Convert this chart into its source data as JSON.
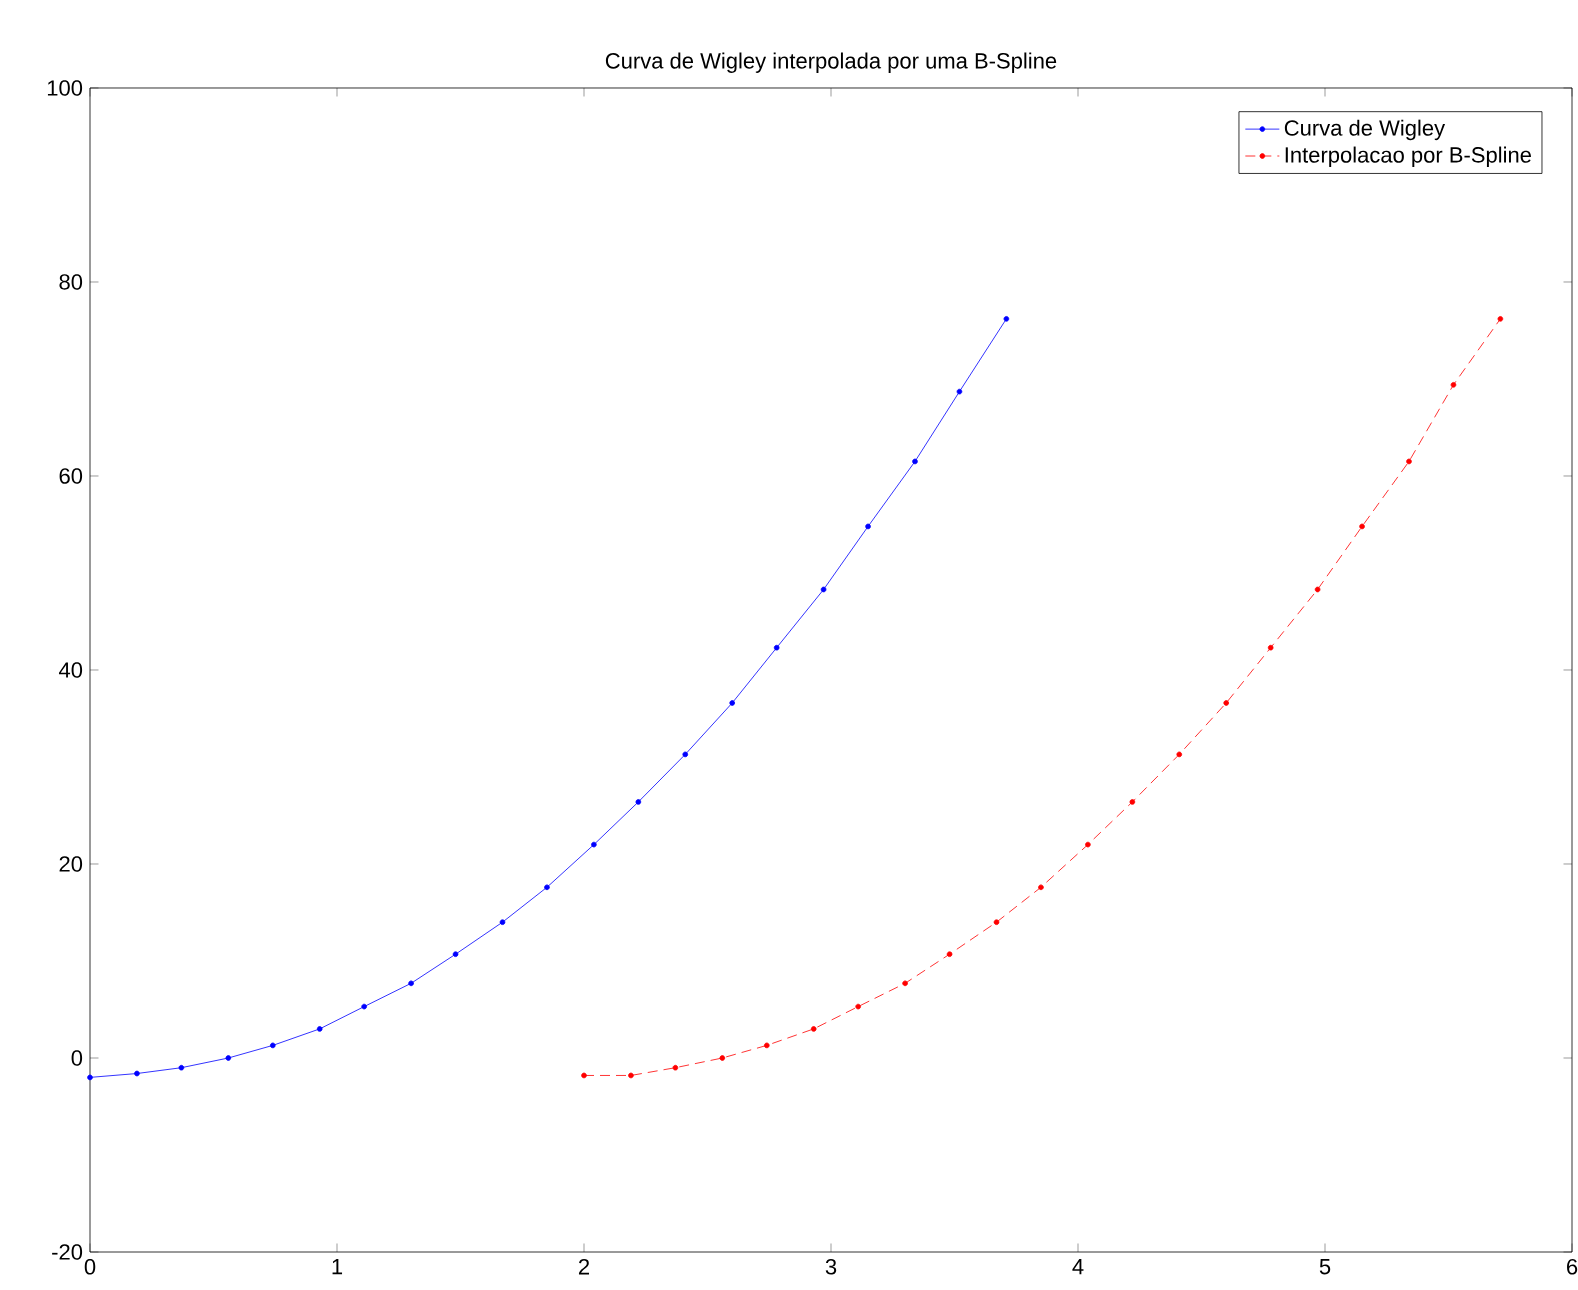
{
  "chart_data": {
    "type": "line",
    "title": "Curva de Wigley interpolada por uma B-Spline",
    "xlim": [
      0,
      6
    ],
    "ylim": [
      -20,
      100
    ],
    "xticks": [
      0,
      1,
      2,
      3,
      4,
      5,
      6
    ],
    "yticks": [
      -20,
      0,
      20,
      40,
      60,
      80,
      100
    ],
    "grid": false,
    "legend": "top right",
    "marker": "circle",
    "series": [
      {
        "name": "Curva de Wigley",
        "color": "#0000ff",
        "line_style": "solid",
        "x": [
          0,
          0.19,
          0.37,
          0.56,
          0.74,
          0.93,
          1.11,
          1.3,
          1.48,
          1.67,
          1.85,
          2.04,
          2.22,
          2.41,
          2.6,
          2.78,
          2.97,
          3.15,
          3.34,
          3.52,
          3.71
        ],
        "values": [
          -2,
          -1.6,
          -1,
          0,
          1.3,
          3,
          5.3,
          7.7,
          10.7,
          14,
          17.6,
          22,
          26.4,
          31.3,
          36.6,
          42.3,
          48.3,
          54.8,
          61.5,
          68.7,
          76.2
        ]
      },
      {
        "name": "Interpolacao por B-Spline",
        "color": "#ff0000",
        "line_style": "dashed",
        "x": [
          2,
          2.19,
          2.37,
          2.56,
          2.74,
          2.93,
          3.11,
          3.3,
          3.48,
          3.67,
          3.85,
          4.04,
          4.22,
          4.41,
          4.6,
          4.78,
          4.97,
          5.15,
          5.34,
          5.52,
          5.71
        ],
        "values": [
          -1.8,
          -1.8,
          -1,
          0,
          1.3,
          3,
          5.3,
          7.7,
          10.7,
          14,
          17.6,
          22,
          26.4,
          31.3,
          36.6,
          42.3,
          48.3,
          54.8,
          61.5,
          69.4,
          76.2
        ]
      }
    ]
  }
}
